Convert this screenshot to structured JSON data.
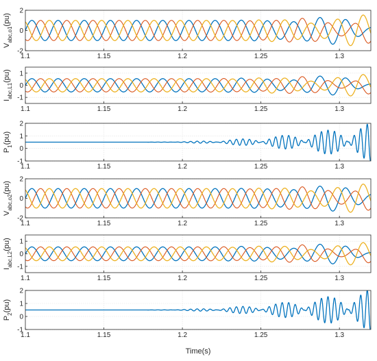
{
  "chart_data": {
    "type": "line",
    "xlabel": "Time(s)",
    "xlim": [
      1.1,
      1.32
    ],
    "xticks": [
      "1.1",
      "1.15",
      "1.2",
      "1.25",
      "1.3"
    ],
    "xtick_values": [
      1.1,
      1.15,
      1.2,
      1.25,
      1.3
    ],
    "grid": true,
    "colors": {
      "phase_a": "#0072BD",
      "phase_b": "#D95319",
      "phase_c": "#EDB120"
    },
    "subplots": [
      {
        "ylabel_main": "V",
        "ylabel_sub": "abc,o1",
        "ylabel_unit": "(pu)",
        "ylim": [
          -2,
          2
        ],
        "yticks": [
          "-2",
          "0",
          "2"
        ],
        "ytick_values": [
          -2,
          0,
          2
        ],
        "kind": "three_phase",
        "frequency_hz": 60,
        "base_amplitude": 1.0,
        "instability_onset_s": 1.22,
        "end_swing": 0.7,
        "series": [
          {
            "name": "a",
            "color": "#0072BD",
            "phase_deg": 0
          },
          {
            "name": "b",
            "color": "#D95319",
            "phase_deg": -120
          },
          {
            "name": "c",
            "color": "#EDB120",
            "phase_deg": 120
          }
        ]
      },
      {
        "ylabel_main": "I",
        "ylabel_sub": "abc,L1",
        "ylabel_unit": "(pu)",
        "ylim": [
          -1.5,
          1.5
        ],
        "yticks": [
          "-1",
          "0",
          "1"
        ],
        "ytick_values": [
          -1,
          0,
          1
        ],
        "kind": "three_phase",
        "frequency_hz": 60,
        "base_amplitude": 0.55,
        "instability_onset_s": 1.2,
        "end_swing": 0.8,
        "series": [
          {
            "name": "a",
            "color": "#0072BD",
            "phase_deg": 0
          },
          {
            "name": "b",
            "color": "#D95319",
            "phase_deg": -120
          },
          {
            "name": "c",
            "color": "#EDB120",
            "phase_deg": 120
          }
        ]
      },
      {
        "ylabel_main": "P",
        "ylabel_sub": "1",
        "ylabel_unit": "(pu)",
        "ylim": [
          -1,
          2
        ],
        "yticks": [
          "-1",
          "0",
          "1",
          "2"
        ],
        "ytick_values": [
          -1,
          0,
          1,
          2
        ],
        "kind": "power",
        "base_value": 0.5,
        "oscillation_onset_s": 1.17,
        "end_swing": 1.5,
        "series": [
          {
            "name": "P1",
            "color": "#0072BD"
          }
        ]
      },
      {
        "ylabel_main": "V",
        "ylabel_sub": "abc,o2",
        "ylabel_unit": "(pu)",
        "ylim": [
          -2,
          2
        ],
        "yticks": [
          "-2",
          "0",
          "2"
        ],
        "ytick_values": [
          -2,
          0,
          2
        ],
        "kind": "three_phase",
        "frequency_hz": 60,
        "base_amplitude": 1.0,
        "instability_onset_s": 1.22,
        "end_swing": 0.6,
        "series": [
          {
            "name": "a",
            "color": "#0072BD",
            "phase_deg": 0
          },
          {
            "name": "b",
            "color": "#D95319",
            "phase_deg": -120
          },
          {
            "name": "c",
            "color": "#EDB120",
            "phase_deg": 120
          }
        ]
      },
      {
        "ylabel_main": "I",
        "ylabel_sub": "abc,L2",
        "ylabel_unit": "(pu)",
        "ylim": [
          -1.5,
          1.5
        ],
        "yticks": [
          "-1",
          "0",
          "1"
        ],
        "ytick_values": [
          -1,
          0,
          1
        ],
        "kind": "three_phase",
        "frequency_hz": 60,
        "base_amplitude": 0.55,
        "instability_onset_s": 1.2,
        "end_swing": 0.8,
        "series": [
          {
            "name": "a",
            "color": "#0072BD",
            "phase_deg": 0
          },
          {
            "name": "b",
            "color": "#D95319",
            "phase_deg": -120
          },
          {
            "name": "c",
            "color": "#EDB120",
            "phase_deg": 120
          }
        ]
      },
      {
        "ylabel_main": "P",
        "ylabel_sub": "2",
        "ylabel_unit": "(pu)",
        "ylim": [
          -1,
          2
        ],
        "yticks": [
          "-1",
          "0",
          "1",
          "2"
        ],
        "ytick_values": [
          -1,
          0,
          1,
          2
        ],
        "kind": "power",
        "base_value": 0.5,
        "oscillation_onset_s": 1.17,
        "end_swing": 1.6,
        "series": [
          {
            "name": "P2",
            "color": "#0072BD"
          }
        ]
      }
    ]
  }
}
